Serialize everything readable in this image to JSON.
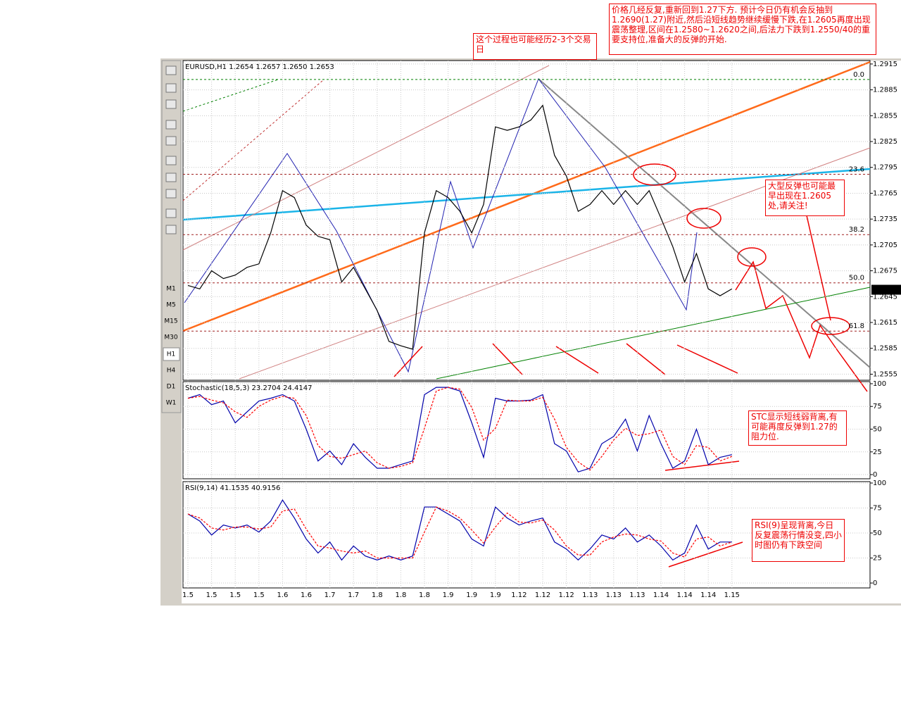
{
  "chart_data": [
    {
      "type": "line",
      "legend_text": "EURUSD,H1  1.2654 1.2657 1.2650 1.2653",
      "ylim": [
        1.2548,
        1.2919
      ],
      "yticks": [
        1.2915,
        1.2885,
        1.2855,
        1.2825,
        1.2795,
        1.2765,
        1.2735,
        1.2705,
        1.2675,
        1.2645,
        1.2615,
        1.2585,
        1.2555
      ],
      "grid": true,
      "series": [
        {
          "color": "#000000",
          "values": [
            1.2658,
            1.2654,
            1.2675,
            1.2666,
            1.267,
            1.2679,
            1.2683,
            1.2719,
            1.2768,
            1.276,
            1.2728,
            1.2715,
            1.2711,
            1.2662,
            1.2679,
            1.2654,
            1.2629,
            1.2593,
            1.2588,
            1.2584,
            1.2719,
            1.2768,
            1.276,
            1.2744,
            1.2719,
            1.2752,
            1.2842,
            1.2838,
            1.2842,
            1.285,
            1.2867,
            1.2809,
            1.2785,
            1.2744,
            1.2752,
            1.2768,
            1.2752,
            1.2768,
            1.2752,
            1.2768,
            1.2736,
            1.2703,
            1.2662,
            1.2695,
            1.2654,
            1.2646,
            1.2654
          ]
        }
      ],
      "last_price": 1.2653,
      "fibonacci": [
        {
          "level": {
            "value": 0,
            "label": "0.0"
          },
          "price": 1.2897
        },
        {
          "level": 23.6,
          "price": 1.2787
        },
        {
          "level": 38.2,
          "price": 1.2717
        },
        {
          "level": {
            "value": 50,
            "label": "50.0"
          },
          "price": 1.2661
        },
        {
          "level": 61.8,
          "price": 1.2605
        }
      ]
    },
    {
      "type": "line",
      "legend_text": "Stochastic(18,5,3) 23.2704 24.4147",
      "ylim": [
        -4.6,
        102.3
      ],
      "yticks": [
        0,
        25,
        50,
        75,
        100
      ],
      "grid": true,
      "series": [
        {
          "color": "#0000aa",
          "values": [
            84,
            88,
            77,
            81,
            57,
            69,
            81,
            84,
            88,
            81,
            50,
            15,
            26,
            11,
            34,
            19,
            7,
            7,
            11,
            15,
            88,
            96,
            96,
            92,
            57,
            19,
            84,
            81,
            81,
            82,
            88,
            34,
            26,
            3,
            7,
            34,
            42,
            61,
            26,
            65,
            34,
            7,
            15,
            50,
            11,
            19,
            22
          ]
        },
        {
          "color": "#ff0000",
          "dashed": true,
          "values": [
            84,
            86,
            82,
            79,
            69,
            63,
            75,
            82,
            86,
            84,
            65,
            32,
            20,
            18,
            22,
            26,
            13,
            7,
            9,
            13,
            51,
            92,
            96,
            94,
            74,
            38,
            51,
            82,
            81,
            81,
            85,
            61,
            30,
            14,
            5,
            20,
            38,
            51,
            43,
            45,
            49,
            20,
            11,
            32,
            30,
            15,
            20
          ]
        }
      ]
    },
    {
      "type": "line",
      "legend_text": "RSI(9,14) 41.1535 40.9156",
      "ylim": [
        -4.9,
        101.4
      ],
      "yticks": [
        0,
        25,
        50,
        75,
        100
      ],
      "grid": true,
      "categories": [
        "1.5",
        null,
        "1.5",
        null,
        "1.5",
        null,
        "1.5",
        null,
        "1.6",
        null,
        "1.6",
        null,
        "1.7",
        null,
        "1.7",
        null,
        "1.8",
        null,
        "1.8",
        null,
        "1.8",
        null,
        "1.9",
        null,
        "1.9",
        null,
        "1.9",
        null,
        "1.12",
        null,
        "1.12",
        null,
        "1.12",
        null,
        "1.13",
        null,
        "1.13",
        null,
        "1.13",
        null,
        "1.14",
        null,
        "1.14",
        null,
        "1.14",
        null,
        "1.15"
      ],
      "series": [
        {
          "color": "#0000aa",
          "values": [
            69,
            62,
            48,
            58,
            55,
            58,
            51,
            62,
            83,
            65,
            44,
            30,
            41,
            23,
            37,
            27,
            23,
            27,
            23,
            27,
            76,
            76,
            69,
            62,
            44,
            37,
            76,
            65,
            58,
            62,
            65,
            41,
            34,
            23,
            34,
            48,
            44,
            55,
            41,
            48,
            37,
            23,
            30,
            58,
            34,
            41,
            41
          ]
        },
        {
          "color": "#ff0000",
          "dashed": true,
          "values": [
            69,
            65,
            55,
            53,
            56,
            56,
            54,
            56,
            72,
            74,
            54,
            37,
            35,
            32,
            30,
            32,
            25,
            25,
            25,
            25,
            51,
            76,
            72,
            65,
            53,
            40,
            56,
            70,
            61,
            60,
            63,
            53,
            37,
            28,
            28,
            41,
            46,
            49,
            48,
            44,
            42,
            30,
            26,
            44,
            46,
            37,
            41
          ]
        }
      ]
    }
  ],
  "toolbar": {
    "timeframes": [
      "M1",
      "M5",
      "M15",
      "M30",
      "H1",
      "H4",
      "D1",
      "W1"
    ]
  },
  "annotations": [
    "价格几经反复,重新回到1.27下方. 预计今日仍有机会反抽到1.2690(1.27)附近,然后沿短线趋势继续缓慢下跌,在1.2605再度出现震荡整理,区间在1.2580~1.2620之间,后法力下跌到1.2550/40的重要支持位,准备大的反弹的开始.",
    "这个过程也可能经历2-3个交易日",
    "大型反弹也可能最早出现在1.2605处,请关注!",
    "STC显示短线弱背离,有可能再度反弹到1.27的阻力位.",
    "RSI(9)呈现背离,今日反复震荡行情没变,四小时图仍有下跌空间"
  ]
}
